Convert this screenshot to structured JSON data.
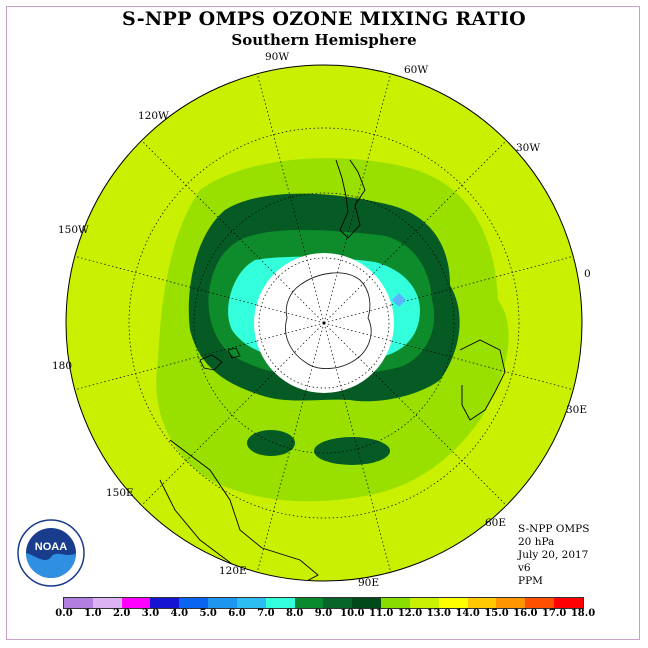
{
  "title": "S-NPP OMPS OZONE MIXING RATIO",
  "subtitle": "Southern Hemisphere",
  "info": {
    "instrument": "S-NPP OMPS",
    "level": "20 hPa",
    "date": "July 20, 2017",
    "version": "v6",
    "units": "PPM"
  },
  "longitude_labels": {
    "lon_90w": "90W",
    "lon_60w": "60W",
    "lon_30w": "30W",
    "lon_0": "0",
    "lon_30e": "30E",
    "lon_60e": "60E",
    "lon_90e": "90E",
    "lon_120e": "120E",
    "lon_150e": "150E",
    "lon_180": "180",
    "lon_150w": "150W",
    "lon_120w": "120W"
  },
  "logo": {
    "text": "NOAA"
  },
  "legend": {
    "ticks": [
      "0.0",
      "1.0",
      "2.0",
      "3.0",
      "4.0",
      "5.0",
      "6.0",
      "7.0",
      "8.0",
      "9.0",
      "10.0",
      "11.0",
      "12.0",
      "13.0",
      "14.0",
      "15.0",
      "16.0",
      "17.0",
      "18.0"
    ],
    "colors": [
      "#b07fe0",
      "#dcb2f2",
      "#ff00ff",
      "#1414d2",
      "#0a64f0",
      "#1e96f0",
      "#2cbef0",
      "#33ffdd",
      "#0a8a2e",
      "#066428",
      "#004a1a",
      "#88dc00",
      "#c8f000",
      "#ffff00",
      "#ffc800",
      "#ff9600",
      "#ff5000",
      "#ff0000",
      "#8b4a2a"
    ]
  },
  "map_colors": {
    "background_field": "#c8f000",
    "band_11": "#99e000",
    "band_9": "#0e8c2c",
    "band_8": "#065a24",
    "band_7": "#33ffdd",
    "polar_night": "#ffffff",
    "marker": "#5ab4ff"
  }
}
